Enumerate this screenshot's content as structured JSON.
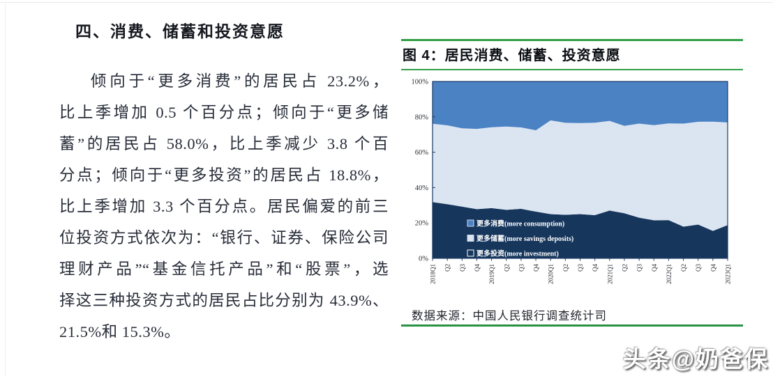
{
  "left_column": {
    "heading": "四、消费、储蓄和投资意愿",
    "lines": [
      "倾向于“更多消费”的居民占 23.2%，",
      "比上季增加 0.5 个百分点；倾向于“更多储",
      "蓄”的居民占 58.0%，比上季减少 3.8 个百",
      "分点；倾向于“更多投资”的居民占 18.8%，",
      "比上季增加 3.3 个百分点。居民偏爱的前三",
      "位投资方式依次为：“银行、证券、保险公司",
      "理财产品”“基金信托产品”和“股票”，选",
      "择这三种投资方式的居民占比分别为 43.9%、",
      "21.5%和 15.3%。"
    ]
  },
  "figure": {
    "title": "图 4：居民消费、储蓄、投资意愿",
    "source": "数据来源：中国人民银行调查统计司",
    "accent_green": "#2f9e45"
  },
  "watermark": {
    "text": "头条@奶爸保"
  },
  "chart_data": {
    "type": "area",
    "stacked": true,
    "title": "图 4：居民消费、储蓄、投资意愿",
    "x_labels": [
      "2018Q1",
      "Q2",
      "Q3",
      "Q4",
      "2019Q1",
      "Q2",
      "Q3",
      "Q4",
      "2020Q1",
      "Q2",
      "Q3",
      "Q4",
      "2021Q1",
      "Q2",
      "Q3",
      "Q4",
      "2022Q1",
      "Q2",
      "Q3",
      "Q4",
      "2023Q1"
    ],
    "ylim": [
      0,
      100
    ],
    "yticks": [
      "0%",
      "20%",
      "40%",
      "60%",
      "80%",
      "100%"
    ],
    "grid": false,
    "legend_position": "inside-bottom-left",
    "series": [
      {
        "key": "more-investment",
        "label": "更多投资",
        "label_en": "(more investment)",
        "color": "#16365c",
        "values": [
          31.8,
          30.6,
          29.2,
          27.8,
          28.4,
          27.4,
          28.0,
          26.4,
          25.0,
          24.6,
          25.0,
          24.4,
          27.0,
          25.5,
          23.0,
          21.5,
          21.6,
          17.9,
          19.1,
          15.5,
          18.8
        ]
      },
      {
        "key": "more-savings",
        "label": "更多储蓄",
        "label_en": "(more savings deposits)",
        "color": "#dbe4f1",
        "values": [
          44.3,
          44.6,
          44.3,
          45.4,
          45.7,
          47.1,
          46.0,
          46.0,
          53.0,
          52.0,
          51.5,
          52.3,
          50.7,
          49.4,
          53.2,
          53.8,
          54.7,
          58.3,
          58.1,
          61.8,
          58.0
        ]
      },
      {
        "key": "more-consumption",
        "label": "更多消费",
        "label_en": "(more consumption)",
        "color": "#4a82c4",
        "values": [
          23.9,
          24.8,
          26.5,
          26.8,
          25.9,
          25.5,
          26.0,
          27.6,
          22.0,
          23.4,
          23.5,
          23.3,
          22.3,
          25.1,
          23.8,
          24.7,
          23.7,
          23.8,
          22.8,
          22.7,
          23.2
        ]
      }
    ],
    "legend": [
      {
        "series": "more-consumption",
        "swatch": "#4a82c4",
        "swatch_border": "#cdd9ec"
      },
      {
        "series": "more-savings",
        "swatch": "#dbe4f1",
        "swatch_border": "#cdd9ec"
      },
      {
        "series": "more-investment",
        "swatch": "#16365c",
        "swatch_border": "#ffffff"
      }
    ],
    "colors": {
      "plot_border": "#1a3a63",
      "axis_text": "#2a2d33"
    }
  }
}
